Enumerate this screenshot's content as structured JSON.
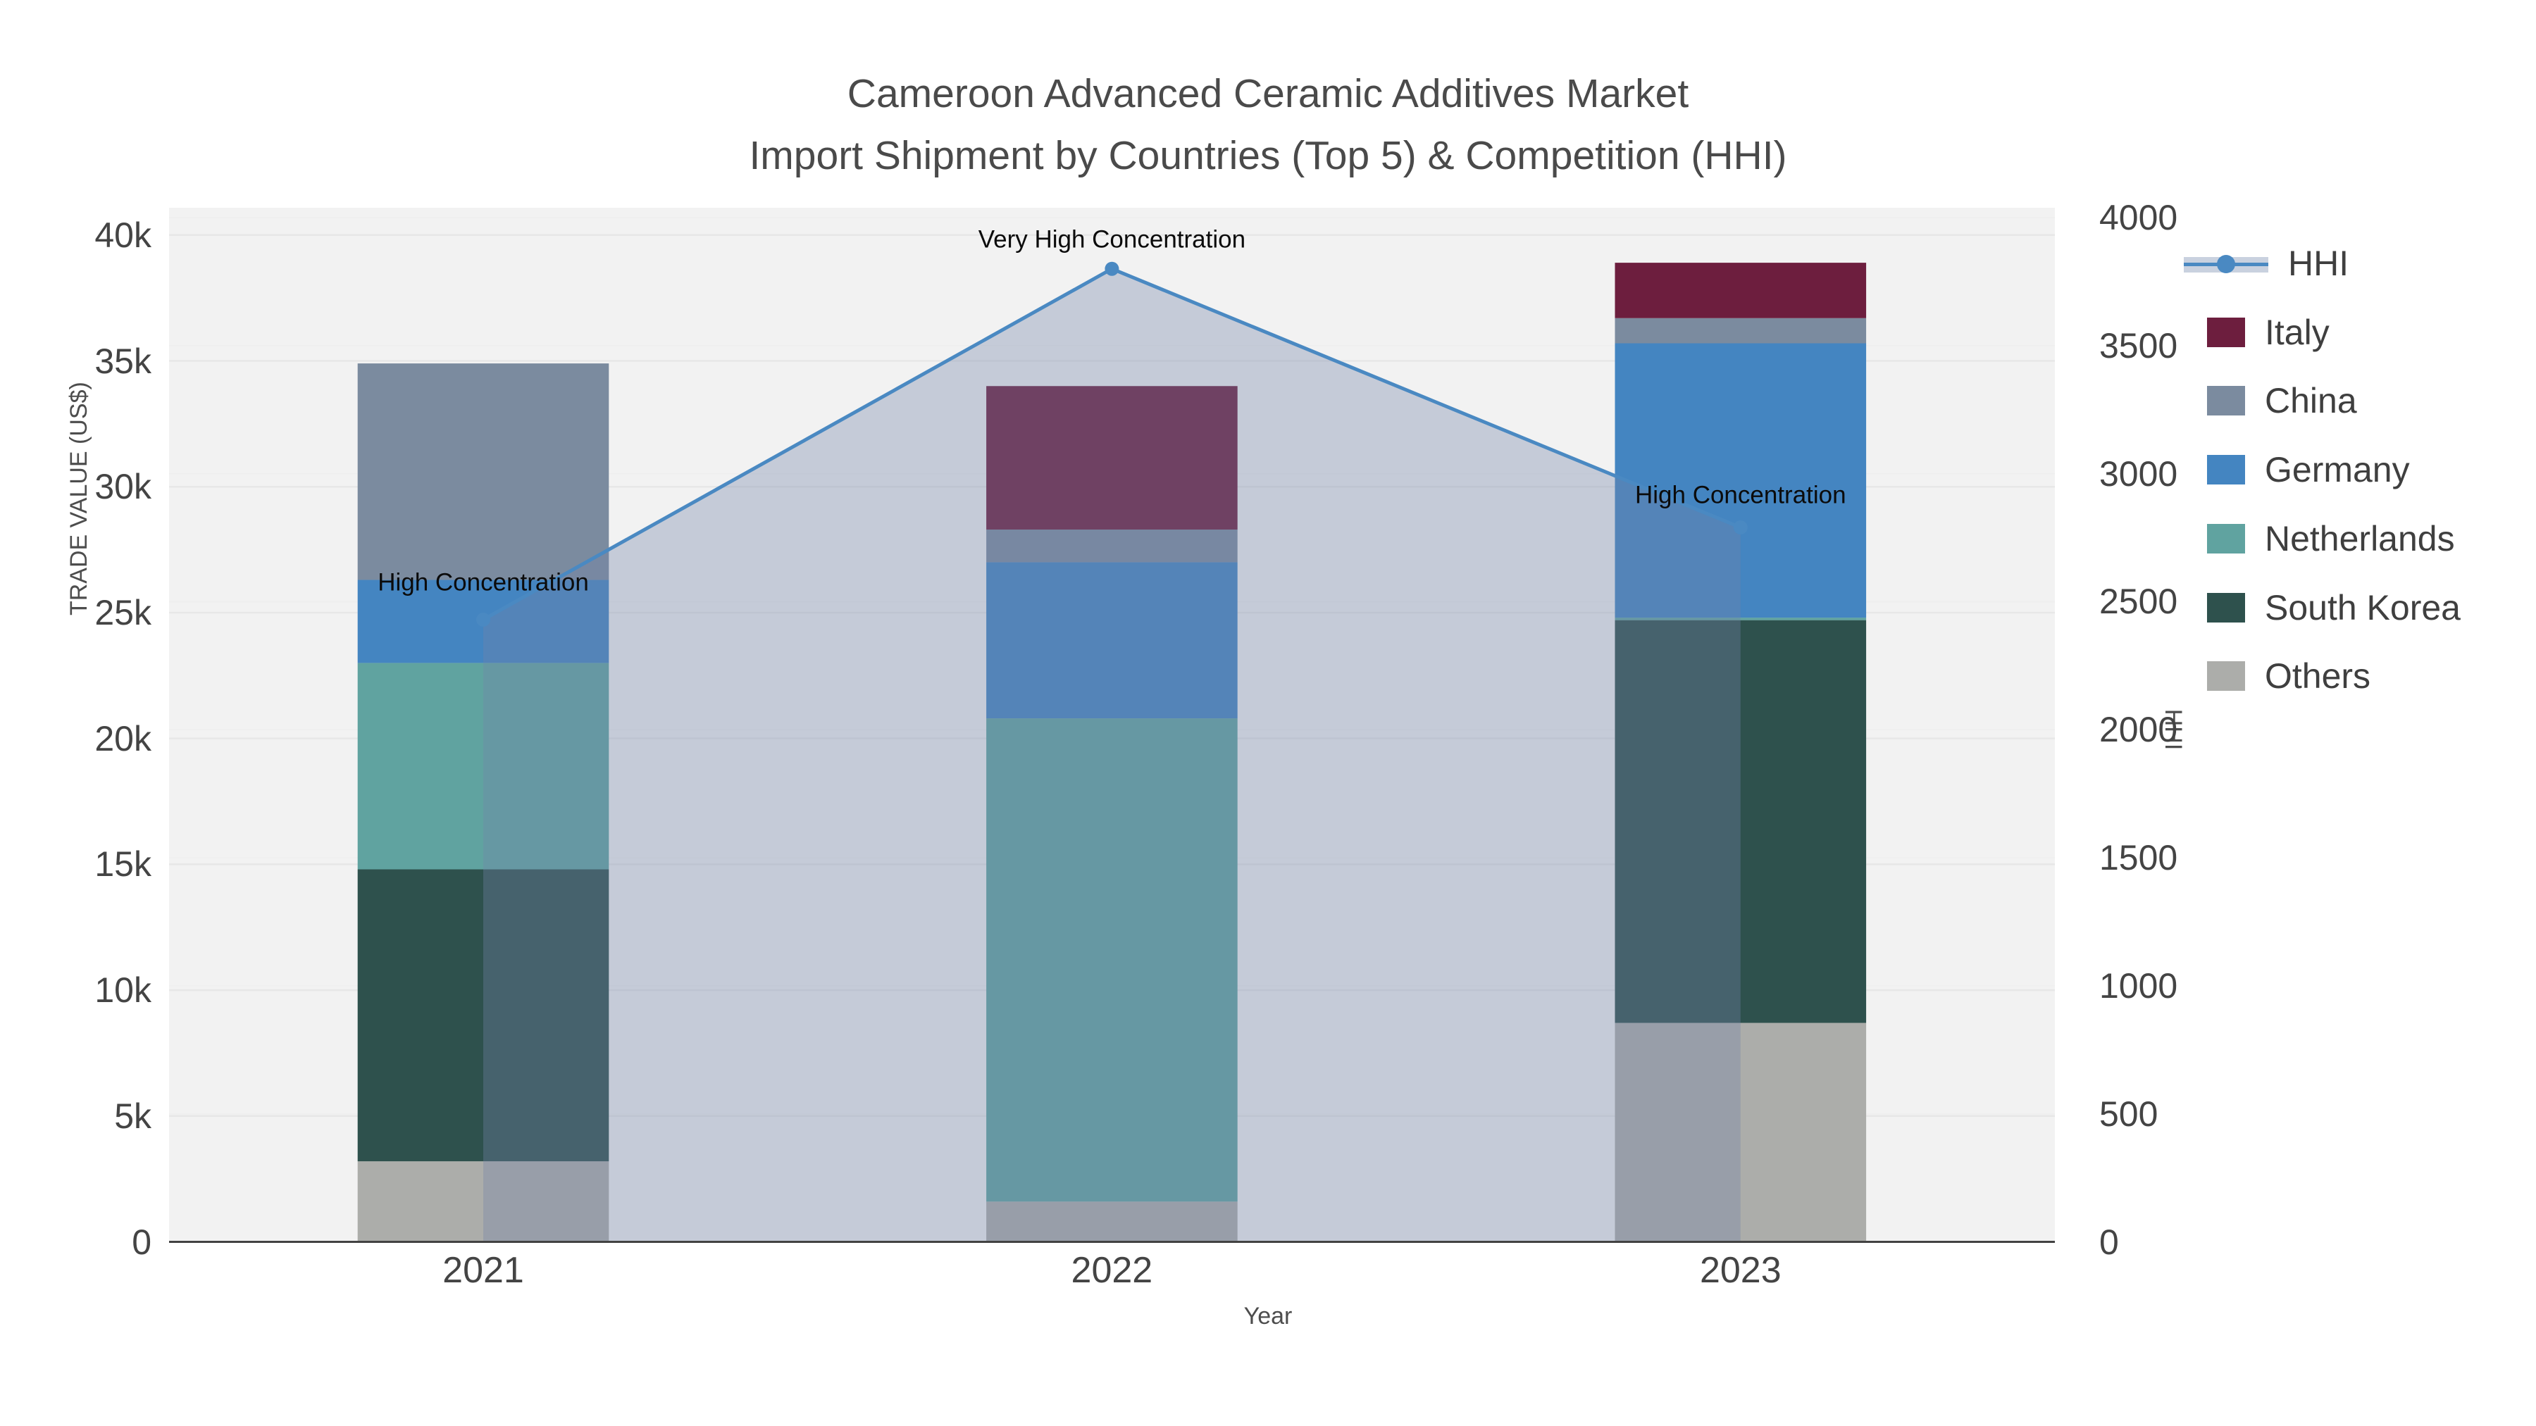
{
  "title": {
    "line1": "Cameroon Advanced Ceramic Additives Market",
    "line2": "Import Shipment by Countries (Top 5) & Competition (HHI)"
  },
  "axes": {
    "x": {
      "title": "Year",
      "categories": [
        "2021",
        "2022",
        "2023"
      ]
    },
    "y_left": {
      "title": "TRADE VALUE (US$)",
      "ticks": [
        "0",
        "5k",
        "10k",
        "15k",
        "20k",
        "25k",
        "30k",
        "35k",
        "40k"
      ],
      "tick_values": [
        0,
        5000,
        10000,
        15000,
        20000,
        25000,
        30000,
        35000,
        40000
      ]
    },
    "y_right": {
      "title": "HHI",
      "ticks": [
        "0",
        "500",
        "1000",
        "1500",
        "2000",
        "2500",
        "3000",
        "3500",
        "4000"
      ],
      "tick_values": [
        0,
        500,
        1000,
        1500,
        2000,
        2500,
        3000,
        3500,
        4000
      ]
    }
  },
  "legend": {
    "entries": [
      {
        "label": "HHI",
        "type": "line",
        "color": "#4a89c2"
      },
      {
        "label": "Italy",
        "type": "bar",
        "color": "#6d1e3e"
      },
      {
        "label": "China",
        "type": "bar",
        "color": "#7b8b9f"
      },
      {
        "label": "Germany",
        "type": "bar",
        "color": "#4485c1"
      },
      {
        "label": "Netherlands",
        "type": "bar",
        "color": "#60a3a0"
      },
      {
        "label": "South Korea",
        "type": "bar",
        "color": "#2e514d"
      },
      {
        "label": "Others",
        "type": "bar",
        "color": "#acadaa"
      }
    ]
  },
  "chart_data": {
    "type": "bar",
    "subtype": "stacked-bars-with-line-overlay",
    "title": "Cameroon Advanced Ceramic Additives Market — Import Shipment by Countries (Top 5) & Competition (HHI)",
    "xlabel": "Year",
    "ylabel_left": "TRADE VALUE (US$)",
    "ylabel_right": "HHI",
    "categories": [
      "2021",
      "2022",
      "2023"
    ],
    "series": [
      {
        "name": "Others",
        "axis": "left",
        "color": "#acadaa",
        "values": [
          3200,
          1600,
          8700
        ]
      },
      {
        "name": "South Korea",
        "axis": "left",
        "color": "#2e514d",
        "values": [
          11600,
          0,
          16000
        ]
      },
      {
        "name": "Netherlands",
        "axis": "left",
        "color": "#60a3a0",
        "values": [
          8200,
          19200,
          100
        ]
      },
      {
        "name": "Germany",
        "axis": "left",
        "color": "#4485c1",
        "values": [
          3300,
          6200,
          10900
        ]
      },
      {
        "name": "China",
        "axis": "left",
        "color": "#7b8b9f",
        "values": [
          8600,
          1300,
          1000
        ]
      },
      {
        "name": "Italy",
        "axis": "left",
        "color": "#6d1e3e",
        "values": [
          0,
          5700,
          2200
        ]
      }
    ],
    "bar_totals": [
      34900,
      34000,
      38900
    ],
    "stack_order_bottom_to_top": [
      "Others",
      "South Korea",
      "Netherlands",
      "Germany",
      "China",
      "Italy"
    ],
    "line": {
      "name": "HHI",
      "axis": "right",
      "color": "#4a89c2",
      "fillcolor": "rgba(116,133,168,0.35)",
      "values": [
        2430,
        3800,
        2790
      ]
    },
    "annotations": [
      {
        "category": "2021",
        "text": "High Concentration"
      },
      {
        "category": "2022",
        "text": "Very High Concentration"
      },
      {
        "category": "2023",
        "text": "High Concentration"
      }
    ],
    "y_left_range": [
      0,
      41100
    ],
    "y_right_range": [
      0,
      4065
    ],
    "grid": true,
    "legend_position": "right",
    "plot_bg": "#f2f2f2"
  },
  "style": {
    "plot_bg": "#f2f2f2",
    "grid_left": "#e7e7e7",
    "grid_right": "#efefef",
    "axis_line": "#424242",
    "hhi_band": "#c9d1df"
  }
}
